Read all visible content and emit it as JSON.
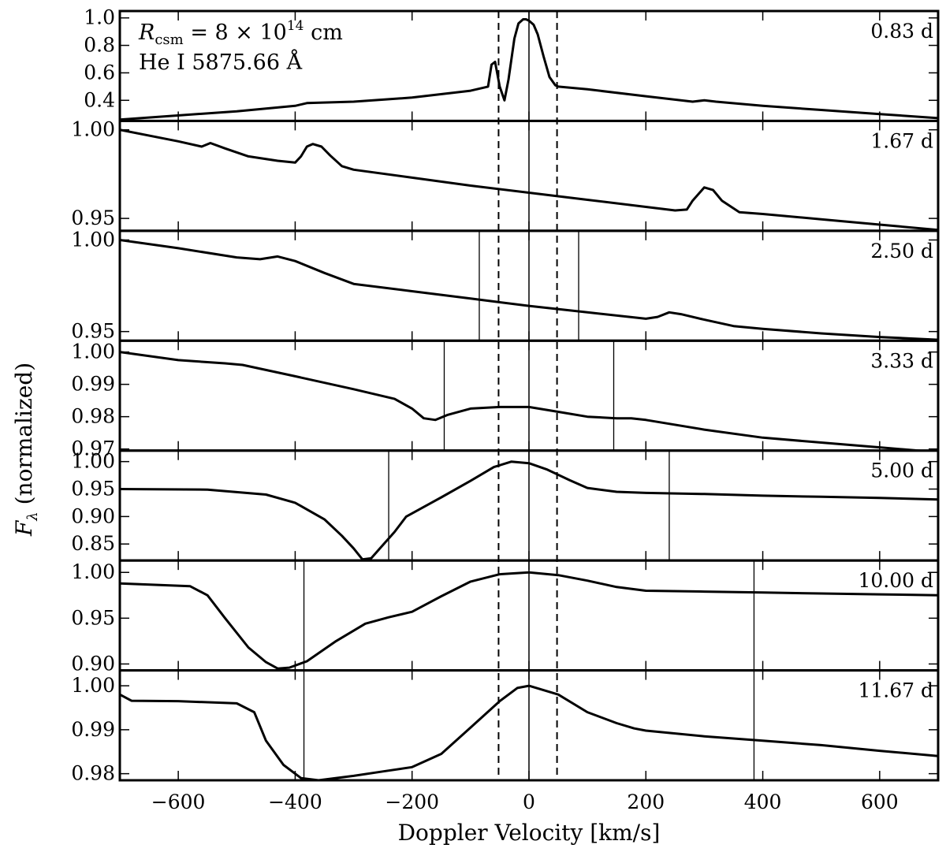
{
  "chart_data": {
    "type": "line",
    "xlabel": "Doppler Velocity [km/s]",
    "ylabel": "F",
    "ylabel_sub": "λ",
    "ylabel_rest": " (normalized)",
    "xlim": [
      -700,
      700
    ],
    "xticks": [
      -600,
      -400,
      -200,
      0,
      200,
      400,
      600
    ],
    "xtick_labels": [
      "−600",
      "−400",
      "−200",
      "0",
      "200",
      "400",
      "600"
    ],
    "dashed_lines_x": [
      -52,
      48
    ],
    "center_line_x": 0,
    "annotation": {
      "r_symbol": "R",
      "r_sub": "csm",
      "r_eq": " = 8 × 10",
      "r_exp": "14",
      "r_unit": " cm",
      "line_id": "He I 5875.66 Å"
    },
    "panels": [
      {
        "time": "0.83 d",
        "ylim": [
          0.25,
          1.05
        ],
        "yticks": [
          0.4,
          0.6,
          0.8,
          1.0
        ],
        "ytick_labels": [
          "0.4",
          "0.6",
          "0.8",
          "1.0"
        ],
        "vlines": [],
        "x": [
          -700,
          -500,
          -400,
          -380,
          -300,
          -200,
          -100,
          -70,
          -64,
          -58,
          -50,
          -42,
          -35,
          -25,
          -18,
          -10,
          -5,
          0,
          8,
          15,
          25,
          35,
          45,
          50,
          100,
          200,
          280,
          300,
          320,
          400,
          500,
          600,
          700
        ],
        "y": [
          0.26,
          0.32,
          0.36,
          0.38,
          0.39,
          0.42,
          0.47,
          0.5,
          0.66,
          0.68,
          0.5,
          0.4,
          0.55,
          0.85,
          0.96,
          0.99,
          0.99,
          0.98,
          0.95,
          0.88,
          0.72,
          0.57,
          0.51,
          0.5,
          0.48,
          0.43,
          0.39,
          0.4,
          0.39,
          0.36,
          0.33,
          0.3,
          0.27
        ]
      },
      {
        "time": "1.67 d",
        "ylim": [
          0.943,
          1.005
        ],
        "yticks": [
          0.95,
          1.0
        ],
        "ytick_labels": [
          "0.95",
          "1.00"
        ],
        "vlines": [],
        "x": [
          -700,
          -600,
          -560,
          -545,
          -520,
          -480,
          -430,
          -400,
          -390,
          -380,
          -370,
          -355,
          -340,
          -320,
          -300,
          -200,
          -100,
          0,
          100,
          200,
          250,
          270,
          280,
          300,
          315,
          330,
          360,
          400,
          500,
          600,
          700
        ],
        "y": [
          1.0,
          0.9935,
          0.9905,
          0.9925,
          0.9895,
          0.985,
          0.9825,
          0.9815,
          0.985,
          0.9905,
          0.992,
          0.9905,
          0.9855,
          0.9795,
          0.9775,
          0.973,
          0.9685,
          0.9645,
          0.9605,
          0.9565,
          0.9545,
          0.955,
          0.96,
          0.9675,
          0.966,
          0.96,
          0.9535,
          0.9525,
          0.9495,
          0.9465,
          0.9435
        ]
      },
      {
        "time": "2.50 d",
        "ylim": [
          0.945,
          1.005
        ],
        "yticks": [
          0.95,
          1.0
        ],
        "ytick_labels": [
          "0.95",
          "1.00"
        ],
        "vlines": [
          -85,
          85
        ],
        "x": [
          -700,
          -600,
          -500,
          -460,
          -430,
          -400,
          -350,
          -300,
          -200,
          -100,
          0,
          100,
          200,
          220,
          240,
          260,
          300,
          350,
          400,
          500,
          600,
          700
        ],
        "y": [
          1.0,
          0.9955,
          0.9905,
          0.9895,
          0.991,
          0.9885,
          0.982,
          0.976,
          0.972,
          0.968,
          0.964,
          0.9605,
          0.957,
          0.958,
          0.9605,
          0.9595,
          0.9565,
          0.953,
          0.9515,
          0.949,
          0.947,
          0.9455
        ]
      },
      {
        "time": "3.33 d",
        "ylim": [
          0.9695,
          1.0035
        ],
        "yticks": [
          0.97,
          0.98,
          0.99,
          1.0
        ],
        "ytick_labels": [
          "0.97",
          "0.98",
          "0.99",
          "1.00"
        ],
        "vlines": [
          -145,
          145
        ],
        "x": [
          -700,
          -600,
          -520,
          -490,
          -400,
          -300,
          -230,
          -200,
          -180,
          -160,
          -140,
          -100,
          -50,
          0,
          50,
          100,
          150,
          175,
          200,
          300,
          400,
          500,
          600,
          700
        ],
        "y": [
          1.0,
          0.9975,
          0.9965,
          0.996,
          0.9925,
          0.9885,
          0.9855,
          0.9825,
          0.9795,
          0.979,
          0.9805,
          0.9825,
          0.983,
          0.983,
          0.9815,
          0.98,
          0.9795,
          0.9795,
          0.979,
          0.976,
          0.9735,
          0.972,
          0.9705,
          0.969
        ]
      },
      {
        "time": "5.00 d",
        "ylim": [
          0.82,
          1.02
        ],
        "yticks": [
          0.85,
          0.9,
          0.95,
          1.0
        ],
        "ytick_labels": [
          "0.85",
          "0.90",
          "0.95",
          "1.00"
        ],
        "vlines": [
          -240,
          240
        ],
        "x": [
          -700,
          -550,
          -450,
          -400,
          -350,
          -320,
          -300,
          -285,
          -270,
          -250,
          -230,
          -210,
          -150,
          -100,
          -60,
          -30,
          0,
          30,
          70,
          100,
          150,
          200,
          300,
          400,
          500,
          600,
          700
        ],
        "y": [
          0.95,
          0.949,
          0.94,
          0.925,
          0.895,
          0.865,
          0.842,
          0.822,
          0.824,
          0.848,
          0.872,
          0.9,
          0.935,
          0.965,
          0.99,
          1.0,
          0.997,
          0.986,
          0.966,
          0.952,
          0.945,
          0.943,
          0.941,
          0.938,
          0.936,
          0.934,
          0.931
        ]
      },
      {
        "time": "10.00 d",
        "ylim": [
          0.893,
          1.013
        ],
        "yticks": [
          0.9,
          0.95,
          1.0
        ],
        "ytick_labels": [
          "0.90",
          "0.95",
          "1.00"
        ],
        "vlines": [
          -385,
          385
        ],
        "x": [
          -700,
          -580,
          -550,
          -520,
          -480,
          -450,
          -430,
          -410,
          -380,
          -330,
          -280,
          -240,
          -200,
          -150,
          -100,
          -50,
          0,
          50,
          100,
          150,
          200,
          300,
          400,
          500,
          600,
          700
        ],
        "y": [
          0.988,
          0.985,
          0.975,
          0.95,
          0.918,
          0.902,
          0.895,
          0.896,
          0.903,
          0.925,
          0.944,
          0.951,
          0.957,
          0.974,
          0.99,
          0.998,
          1.0,
          0.997,
          0.991,
          0.984,
          0.98,
          0.979,
          0.978,
          0.977,
          0.976,
          0.975
        ]
      },
      {
        "time": "11.67 d",
        "ylim": [
          0.9785,
          1.0035
        ],
        "yticks": [
          0.98,
          0.99,
          1.0
        ],
        "ytick_labels": [
          "0.98",
          "0.99",
          "1.00"
        ],
        "vlines": [
          -385,
          385
        ],
        "x": [
          -700,
          -680,
          -600,
          -500,
          -470,
          -450,
          -420,
          -390,
          -360,
          -300,
          -250,
          -200,
          -150,
          -100,
          -50,
          -20,
          0,
          50,
          100,
          150,
          180,
          200,
          300,
          400,
          500,
          600,
          700
        ],
        "y": [
          0.998,
          0.9966,
          0.9965,
          0.996,
          0.994,
          0.9875,
          0.982,
          0.979,
          0.9785,
          0.9795,
          0.9805,
          0.9815,
          0.9845,
          0.9905,
          0.9965,
          0.9995,
          1.0,
          0.998,
          0.994,
          0.9915,
          0.9903,
          0.9898,
          0.9885,
          0.9875,
          0.9865,
          0.9852,
          0.984
        ]
      }
    ]
  }
}
